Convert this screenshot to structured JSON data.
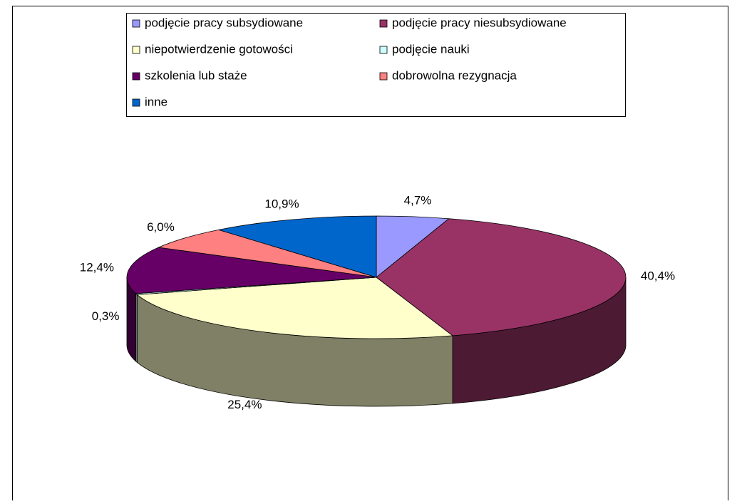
{
  "chart_data": {
    "type": "pie3d",
    "categories": [
      "podjęcie pracy subsydiowane",
      "podjęcie pracy niesubsydiowane",
      "niepotwierdzenie gotowości",
      "podjęcie nauki",
      "szkolenia lub staże",
      "dobrowolna rezygnacja",
      "inne"
    ],
    "values": [
      4.7,
      40.4,
      25.4,
      0.3,
      12.4,
      6.0,
      10.9
    ],
    "value_labels": [
      "4,7%",
      "40,4%",
      "25,4%",
      "0,3%",
      "12,4%",
      "6,0%",
      "10,9%"
    ],
    "colors": [
      "#9999ff",
      "#993366",
      "#ffffcc",
      "#ccffff",
      "#660066",
      "#ff8080",
      "#0066cc"
    ],
    "legend": "top"
  }
}
